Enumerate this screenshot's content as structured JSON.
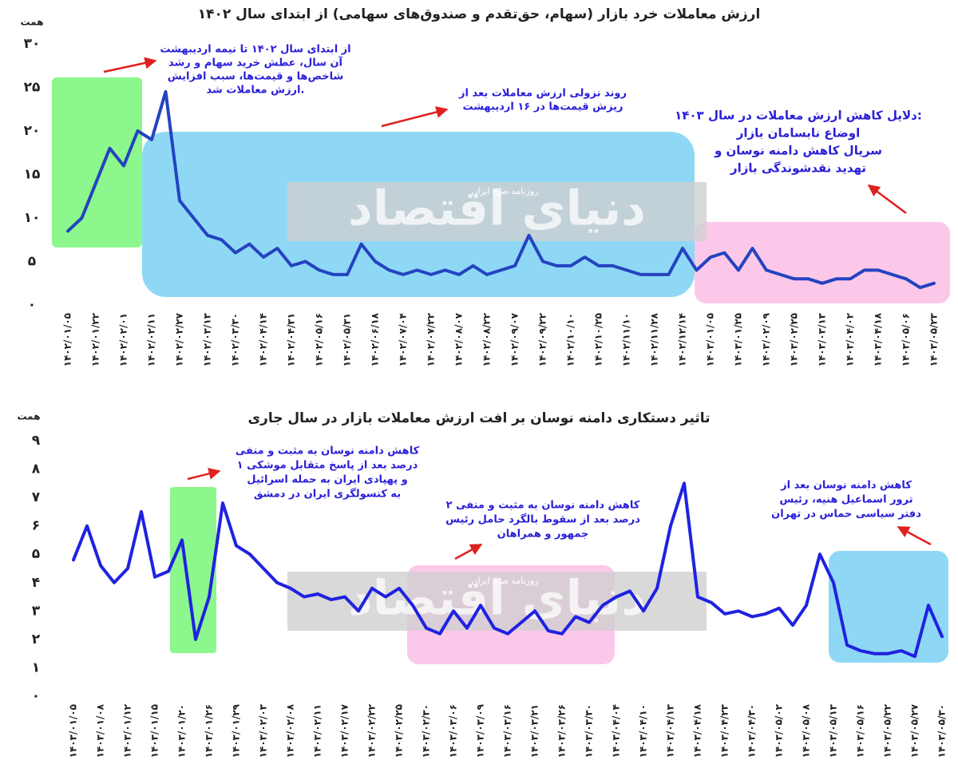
{
  "watermark": "دنیای اقتصاد",
  "watermark_sub": "روزنامه صبح ایران",
  "chart_data": [
    {
      "type": "line",
      "title": "ارزش معاملات خرد بازار (سهام، حق‌تقدم و صندوق‌های سهامی) از ابتدای سال ۱۴۰۲",
      "y_label": "همت",
      "categories": [
        "۱۴۰۲/۰۱/۰۵",
        null,
        "۱۴۰۲/۰۱/۲۲",
        null,
        "۱۴۰۲/۰۲/۰۱",
        null,
        "۱۴۰۲/۰۲/۱۱",
        null,
        "۱۴۰۲/۰۲/۲۷",
        null,
        "۱۴۰۲/۰۳/۱۳",
        null,
        "۱۴۰۲/۰۳/۳۰",
        null,
        "۱۴۰۲/۰۴/۱۴",
        null,
        "۱۴۰۲/۰۴/۳۱",
        null,
        "۱۴۰۲/۰۵/۱۶",
        null,
        "۱۴۰۲/۰۵/۳۱",
        null,
        "۱۴۰۲/۰۶/۱۸",
        null,
        "۱۴۰۲/۰۷/۰۴",
        null,
        "۱۴۰۲/۰۷/۲۲",
        null,
        "۱۴۰۲/۰۸/۰۷",
        null,
        "۱۴۰۲/۰۸/۲۲",
        null,
        "۱۴۰۲/۰۹/۰۷",
        null,
        "۱۴۰۲/۰۹/۲۲",
        null,
        "۱۴۰۲/۱۰/۱۰",
        null,
        "۱۴۰۲/۱۰/۲۵",
        null,
        "۱۴۰۲/۱۱/۱۰",
        null,
        "۱۴۰۲/۱۱/۲۸",
        null,
        "۱۴۰۲/۱۲/۱۴",
        null,
        "۱۴۰۳/۰۱/۰۵",
        null,
        "۱۴۰۳/۰۱/۲۵",
        null,
        "۱۴۰۳/۰۲/۰۹",
        null,
        "۱۴۰۳/۰۲/۲۵",
        null,
        "۱۴۰۳/۰۳/۱۳",
        null,
        "۱۴۰۳/۰۴/۰۲",
        null,
        "۱۴۰۳/۰۴/۱۸",
        null,
        "۱۴۰۳/۰۵/۰۶",
        null,
        "۱۴۰۳/۰۵/۲۳"
      ],
      "values": [
        8.5,
        10,
        14,
        18,
        16,
        20,
        19,
        24.5,
        12,
        10,
        8,
        7.5,
        6,
        7,
        5.5,
        6.5,
        4.5,
        5,
        4,
        3.5,
        3.5,
        7,
        5,
        4,
        3.5,
        4,
        3.5,
        4,
        3.5,
        4.5,
        3.5,
        4,
        4.5,
        8,
        5,
        4.5,
        4.5,
        5.5,
        4.5,
        4.5,
        4,
        3.5,
        3.5,
        3.5,
        6.5,
        4,
        5.5,
        6,
        4,
        6.5,
        4,
        3.5,
        3,
        3,
        2.5,
        3,
        3,
        4,
        4,
        3.5,
        3,
        2,
        2.5
      ],
      "color": "#2443c0",
      "ylim": [
        0,
        30
      ],
      "yticks": [
        {
          "value": 0,
          "label": "۰"
        },
        {
          "value": 5,
          "label": "۵"
        },
        {
          "value": 10,
          "label": "۱۰"
        },
        {
          "value": 15,
          "label": "۱۵"
        },
        {
          "value": 20,
          "label": "۲۰"
        },
        {
          "value": 25,
          "label": "۲۵"
        },
        {
          "value": 30,
          "label": "۳۰"
        }
      ],
      "annotations": [
        [
          "از ابتدای سال ۱۴۰۲ تا نیمه اردیبهشت",
          "آن سال، عطش خرید سهام و رشد",
          "شاخص‌ها و قیمت‌ها، سبب افزایش",
          "ارزش معاملات شد."
        ],
        [
          "روند نزولی ارزش معاملات بعد از",
          "ریزش قیمت‌ها در ۱۶ اردیبهشت"
        ],
        [
          "دلایل کاهش ارزش معاملات در سال ۱۴۰۳:",
          "اوضاع نابسامان بازار",
          "سریال کاهش دامنه نوسان و",
          "تهدید نقدشوندگی بازار"
        ]
      ]
    },
    {
      "type": "line",
      "title": "تاثیر دستکاری دامنه نوسان بر افت ارزش معاملات بازار در سال جاری",
      "y_label": "همت",
      "categories": [
        "۱۴۰۳/۰۱/۰۵",
        null,
        "۱۴۰۳/۰۱/۰۸",
        null,
        "۱۴۰۳/۰۱/۱۲",
        null,
        "۱۴۰۳/۰۱/۱۵",
        null,
        "۱۴۰۳/۰۱/۲۰",
        null,
        "۱۴۰۳/۰۱/۲۶",
        null,
        "۱۴۰۳/۰۱/۲۹",
        null,
        "۱۴۰۳/۰۲/۰۳",
        null,
        "۱۴۰۳/۰۲/۰۸",
        null,
        "۱۴۰۳/۰۲/۱۱",
        null,
        "۱۴۰۳/۰۲/۱۷",
        null,
        "۱۴۰۳/۰۲/۲۲",
        null,
        "۱۴۰۳/۰۲/۲۵",
        null,
        "۱۴۰۳/۰۲/۳۰",
        null,
        "۱۴۰۳/۰۳/۰۶",
        null,
        "۱۴۰۳/۰۳/۰۹",
        null,
        "۱۴۰۳/۰۳/۱۶",
        null,
        "۱۴۰۳/۰۳/۲۱",
        null,
        "۱۴۰۳/۰۳/۲۶",
        null,
        "۱۴۰۳/۰۳/۳۰",
        null,
        "۱۴۰۳/۰۴/۰۴",
        null,
        "۱۴۰۳/۰۴/۱۰",
        null,
        "۱۴۰۳/۰۴/۱۳",
        null,
        "۱۴۰۳/۰۴/۱۸",
        null,
        "۱۴۰۳/۰۴/۲۳",
        null,
        "۱۴۰۳/۰۴/۳۰",
        null,
        "۱۴۰۳/۰۵/۰۲",
        null,
        "۱۴۰۳/۰۵/۰۸",
        null,
        "۱۴۰۳/۰۵/۱۳",
        null,
        "۱۴۰۳/۰۵/۱۶",
        null,
        "۱۴۰۳/۰۵/۲۲",
        null,
        "۱۴۰۳/۰۵/۲۷",
        null,
        "۱۴۰۳/۰۵/۳۰"
      ],
      "values": [
        4.8,
        6.0,
        4.6,
        4.0,
        4.5,
        6.5,
        4.2,
        4.4,
        5.5,
        2.0,
        3.5,
        6.8,
        5.3,
        5.0,
        4.5,
        4.0,
        3.8,
        3.5,
        3.6,
        3.4,
        3.5,
        3.0,
        3.8,
        3.5,
        3.8,
        3.2,
        2.4,
        2.2,
        3.0,
        2.4,
        3.2,
        2.4,
        2.2,
        2.6,
        3.0,
        2.3,
        2.2,
        2.8,
        2.6,
        3.2,
        3.5,
        3.7,
        3.0,
        3.8,
        6.0,
        7.5,
        3.5,
        3.3,
        2.9,
        3.0,
        2.8,
        2.9,
        3.1,
        2.5,
        3.2,
        5.0,
        4.0,
        1.8,
        1.6,
        1.5,
        1.5,
        1.6,
        1.4,
        3.2,
        2.1
      ],
      "color": "#1f22e0",
      "ylim": [
        0,
        9
      ],
      "yticks": [
        {
          "value": 0,
          "label": "۰"
        },
        {
          "value": 1,
          "label": "۱"
        },
        {
          "value": 2,
          "label": "۲"
        },
        {
          "value": 3,
          "label": "۳"
        },
        {
          "value": 4,
          "label": "۴"
        },
        {
          "value": 5,
          "label": "۵"
        },
        {
          "value": 6,
          "label": "۶"
        },
        {
          "value": 7,
          "label": "۷"
        },
        {
          "value": 8,
          "label": "۸"
        },
        {
          "value": 9,
          "label": "۹"
        }
      ],
      "annotations": [
        [
          "کاهش دامنه نوسان به مثبت و منفی",
          "۱ درصد بعد از پاسخ متقابل موشکی",
          "و پهپادی ایران به حمله اسرائیل",
          "به کنسولگری ایران در دمشق"
        ],
        [
          "کاهش دامنه نوسان به مثبت و منفی ۲",
          "درصد بعد از سقوط بالگرد حامل رئیس",
          "جمهور و همراهان"
        ],
        [
          "کاهش دامنه نوسان بعد از",
          "ترور اسماعیل هنیه، رئیس",
          "دفتر سیاسی حماس در تهران"
        ]
      ]
    }
  ]
}
